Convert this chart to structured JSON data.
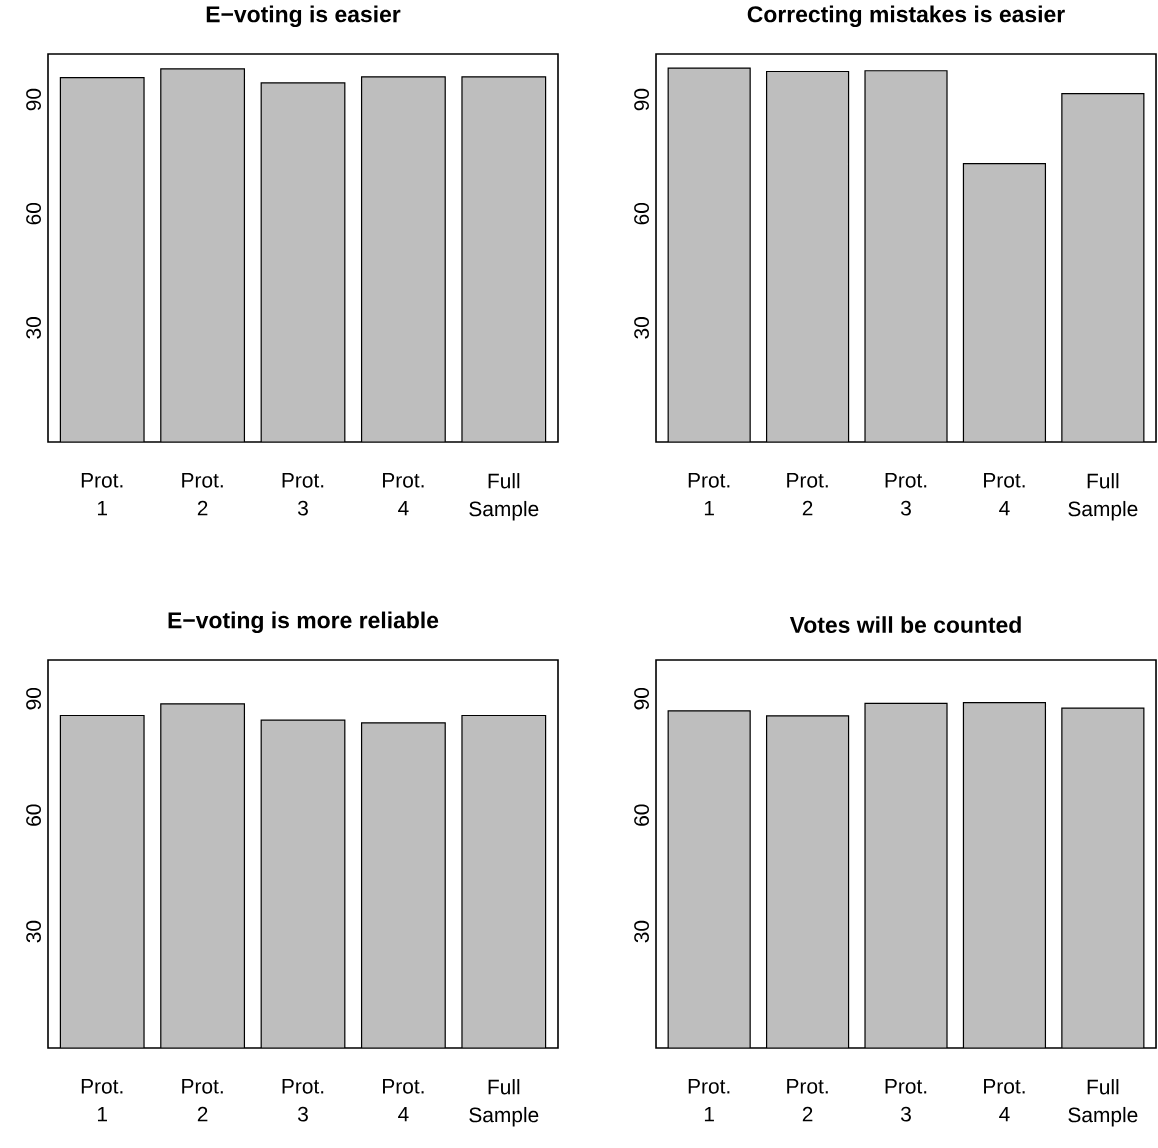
{
  "chart_data": [
    {
      "type": "bar",
      "title": "E−voting is easier",
      "categories": [
        "Prot. 1",
        "Prot. 2",
        "Prot. 3",
        "Prot. 4",
        "Full Sample"
      ],
      "values": [
        95.8,
        98.1,
        94.4,
        96,
        96
      ],
      "color": "#bebebe",
      "ylim": [
        0,
        102
      ],
      "yticks": [
        30,
        60,
        90
      ]
    },
    {
      "type": "bar",
      "title": "Correcting mistakes is easier",
      "categories": [
        "Prot. 1",
        "Prot. 2",
        "Prot. 3",
        "Prot. 4",
        "Full Sample"
      ],
      "values": [
        98.3,
        97.4,
        97.6,
        73.2,
        91.6
      ],
      "color": "#bebebe",
      "ylim": [
        0,
        102
      ],
      "yticks": [
        30,
        60,
        90
      ]
    },
    {
      "type": "bar",
      "title": "E−voting is more reliable",
      "categories": [
        "Prot. 1",
        "Prot. 2",
        "Prot. 3",
        "Prot. 4",
        "Full Sample"
      ],
      "values": [
        85.7,
        88.7,
        84.5,
        83.8,
        85.7
      ],
      "color": "#bebebe",
      "ylim": [
        0,
        100
      ],
      "yticks": [
        30,
        60,
        90
      ]
    },
    {
      "type": "bar",
      "title": "Votes will be counted",
      "categories": [
        "Prot. 1",
        "Prot. 2",
        "Prot. 3",
        "Prot. 4",
        "Full Sample"
      ],
      "values": [
        86.9,
        85.6,
        88.8,
        89.0,
        87.6
      ],
      "color": "#bebebe",
      "ylim": [
        0,
        100
      ],
      "yticks": [
        30,
        60,
        90
      ]
    }
  ]
}
